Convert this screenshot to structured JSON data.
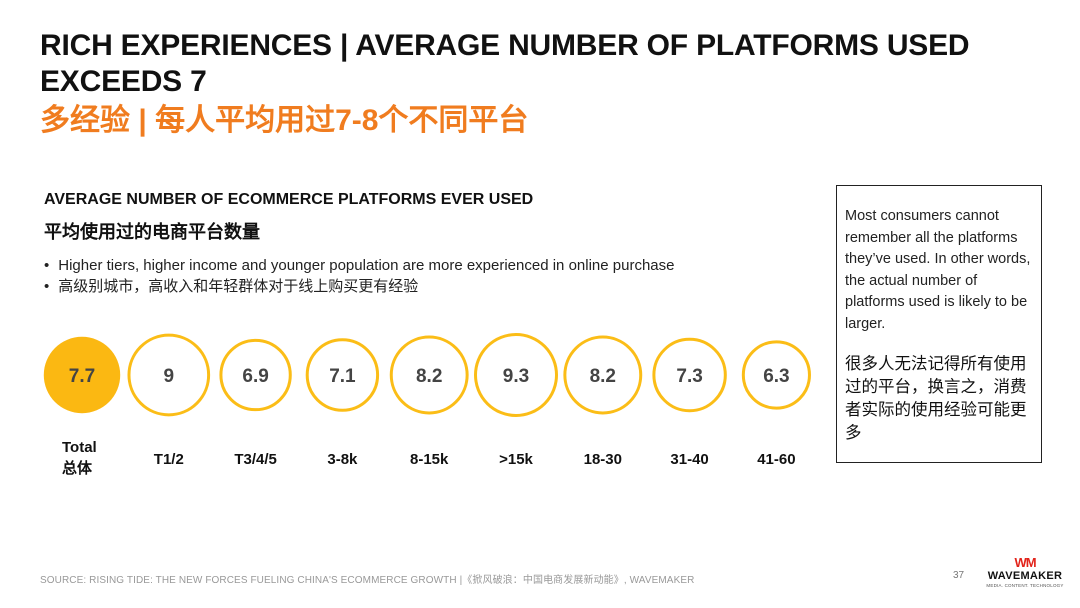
{
  "title": {
    "en": "RICH EXPERIENCES | AVERAGE NUMBER OF PLATFORMS USED EXCEEDS 7",
    "cn": "多经验 | 每人平均用过7-8个不同平台"
  },
  "chart_title": {
    "en": "AVERAGE NUMBER OF ECOMMERCE PLATFORMS EVER USED",
    "cn": "平均使用过的电商平台数量"
  },
  "bullets": [
    "Higher tiers, higher income and younger population are more experienced in online purchase",
    "高级别城市，高收入和年轻群体对于线上购买更有经验"
  ],
  "chart_data": {
    "type": "bubble",
    "categories": [
      "Total 总体",
      "T1/2",
      "T3/4/5",
      "3-8k",
      "8-15k",
      ">15k",
      "18-30",
      "31-40",
      "41-60"
    ],
    "labels": [
      [
        "Total",
        "总体"
      ],
      [
        "T1/2"
      ],
      [
        "T3/4/5"
      ],
      [
        "3-8k"
      ],
      [
        "8-15k"
      ],
      [
        ">15k"
      ],
      [
        "18-30"
      ],
      [
        "31-40"
      ],
      [
        "41-60"
      ]
    ],
    "values": [
      7.7,
      9,
      6.9,
      7.1,
      8.2,
      9.3,
      8.2,
      7.3,
      6.3
    ],
    "highlight_index": 0,
    "colors": {
      "highlight_fill": "#fbb812",
      "ring": "#fbbd17",
      "ring_fill": "#ffffff",
      "value_text": "#444444"
    }
  },
  "note": {
    "en": "Most consumers cannot remember all the platforms they’ve used. In other words, the actual number of platforms used is likely to be larger.",
    "cn": "很多人无法记得所有使用过的平台，换言之，消费者实际的使用经验可能更多"
  },
  "source": "SOURCE: RISING TIDE: THE NEW FORCES FUELING CHINA'S ECOMMERCE GROWTH |《掀风破浪：中国电商发展新动能》, WAVEMAKER",
  "page_number": "37",
  "logo": {
    "mark": "WM",
    "name": "WAVEMAKER",
    "tagline": "MEDIA. CONTENT. TECHNOLOGY"
  }
}
